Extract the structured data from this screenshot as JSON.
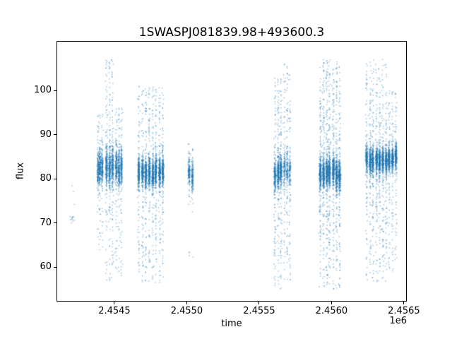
{
  "chart_data": {
    "type": "scatter",
    "title": "1SWASPJ081839.98+493600.3",
    "xlabel": "time",
    "ylabel": "flux",
    "x_offset_label": "1e6",
    "grid": false,
    "legend": null,
    "marker_color": "#1f77b4",
    "marker_alpha": 0.5,
    "marker_size": 1.4,
    "xlim": [
      2454100,
      2456520
    ],
    "ylim": [
      52.2,
      111.2
    ],
    "xticks": {
      "values": [
        2454500,
        2455000,
        2455500,
        2456000,
        2456500
      ],
      "labels": [
        "2.4545",
        "2.4550",
        "2.4555",
        "2.4560",
        "2.4565"
      ]
    },
    "yticks": {
      "values": [
        60,
        70,
        80,
        90,
        100
      ],
      "labels": [
        "60",
        "70",
        "80",
        "90",
        "100"
      ]
    },
    "seed": 42,
    "note": "Dense light-curve scatter summarized as per-night generative clusters: t=[start,end] in days (JD), core = gaussian blob of the main flux band, tail = fading vertical spread between lo and hi.",
    "clusters": [
      {
        "nights": 2,
        "t": [
          2454198,
          2454222
        ],
        "core": {
          "n": 9,
          "mu": 71.2,
          "sigma": 0.6
        },
        "tail": {
          "n": 5,
          "lo": 78.0,
          "hi": 81.5
        }
      },
      {
        "nights": 3,
        "t": [
          2454378,
          2454424
        ],
        "core": {
          "n": 520,
          "mu": 82.2,
          "sigma": 2.0
        },
        "tail": {
          "n": 130,
          "lo": 62.0,
          "hi": 95.0
        }
      },
      {
        "nights": 3,
        "t": [
          2454438,
          2454494
        ],
        "core": {
          "n": 620,
          "mu": 82.6,
          "sigma": 2.3
        },
        "tail": {
          "n": 260,
          "lo": 56.5,
          "hi": 107.0
        }
      },
      {
        "nights": 3,
        "t": [
          2454504,
          2454560
        ],
        "core": {
          "n": 540,
          "mu": 82.4,
          "sigma": 2.1
        },
        "tail": {
          "n": 190,
          "lo": 58.0,
          "hi": 96.0
        }
      },
      {
        "nights": 8,
        "t": [
          2454658,
          2454846
        ],
        "core": {
          "n": 1900,
          "mu": 81.4,
          "sigma": 1.7
        },
        "tail": {
          "n": 750,
          "lo": 56.5,
          "hi": 101.0
        }
      },
      {
        "nights": 2,
        "t": [
          2455008,
          2455046
        ],
        "core": {
          "n": 300,
          "mu": 81.0,
          "sigma": 1.5
        },
        "tail": {
          "n": 60,
          "lo": 62.0,
          "hi": 88.0
        }
      },
      {
        "nights": 3,
        "t": [
          2455598,
          2455662
        ],
        "core": {
          "n": 620,
          "mu": 81.4,
          "sigma": 1.7
        },
        "tail": {
          "n": 320,
          "lo": 55.0,
          "hi": 103.0
        }
      },
      {
        "nights": 3,
        "t": [
          2455662,
          2455726
        ],
        "core": {
          "n": 260,
          "mu": 81.8,
          "sigma": 1.9
        },
        "tail": {
          "n": 230,
          "lo": 57.0,
          "hi": 107.0
        }
      },
      {
        "nights": 7,
        "t": [
          2455908,
          2456066
        ],
        "core": {
          "n": 1700,
          "mu": 81.4,
          "sigma": 1.7
        },
        "tail": {
          "n": 950,
          "lo": 55.0,
          "hi": 107.0
        }
      },
      {
        "nights": 7,
        "t": [
          2456234,
          2456386
        ],
        "core": {
          "n": 1500,
          "mu": 84.4,
          "sigma": 1.5
        },
        "tail": {
          "n": 720,
          "lo": 56.5,
          "hi": 107.0
        }
      },
      {
        "nights": 3,
        "t": [
          2456388,
          2456456
        ],
        "core": {
          "n": 720,
          "mu": 84.8,
          "sigma": 1.3
        },
        "tail": {
          "n": 260,
          "lo": 59.0,
          "hi": 100.0
        }
      }
    ]
  }
}
